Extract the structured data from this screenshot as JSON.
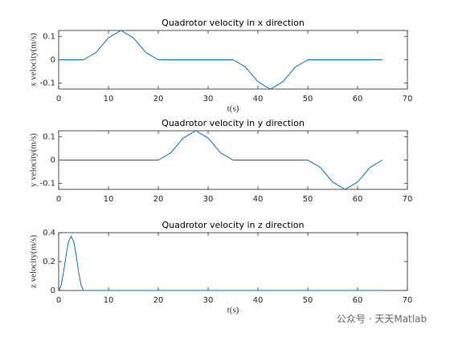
{
  "chart_data": [
    {
      "type": "line",
      "title": "Quadrotor velocity in x direction",
      "ylabel": "x velocity(m/s)",
      "xlabel": "t(s)",
      "color": "#0072bd",
      "x": [
        0,
        2.5,
        5,
        7.5,
        10,
        12.5,
        15,
        17.5,
        20,
        22.5,
        25,
        27.5,
        30,
        32.5,
        35,
        37.5,
        40,
        42.5,
        45,
        47.5,
        50,
        52.5,
        55,
        57.5,
        60,
        62.5,
        65
      ],
      "values": [
        0,
        0,
        0,
        0.031,
        0.094,
        0.125,
        0.094,
        0.031,
        0,
        0,
        0,
        0,
        0,
        0,
        0,
        -0.031,
        -0.094,
        -0.125,
        -0.094,
        -0.031,
        0,
        0,
        0,
        0,
        0,
        0,
        0
      ],
      "xlim": [
        0,
        70
      ],
      "xticks": [
        0,
        10,
        20,
        30,
        40,
        50,
        60,
        70
      ],
      "ylim": [
        -0.125,
        0.125
      ],
      "yticks": [
        -0.1,
        0,
        0.1
      ]
    },
    {
      "type": "line",
      "title": "Quadrotor velocity in y direction",
      "ylabel": "y velocity(m/s)",
      "color": "#0072bd",
      "x": [
        0,
        2.5,
        5,
        7.5,
        10,
        12.5,
        15,
        17.5,
        20,
        22.5,
        25,
        27.5,
        30,
        32.5,
        35,
        37.5,
        40,
        42.5,
        45,
        47.5,
        50,
        52.5,
        55,
        57.5,
        60,
        62.5,
        65
      ],
      "values": [
        0,
        0,
        0,
        0,
        0,
        0,
        0,
        0,
        0,
        0.031,
        0.094,
        0.125,
        0.094,
        0.031,
        0,
        0,
        0,
        0,
        0,
        0,
        0,
        -0.031,
        -0.094,
        -0.125,
        -0.094,
        -0.031,
        0
      ],
      "xlim": [
        0,
        70
      ],
      "xticks": [
        0,
        10,
        20,
        30,
        40,
        50,
        60,
        70
      ],
      "ylim": [
        -0.125,
        0.125
      ],
      "yticks": [
        -0.1,
        0,
        0.1
      ]
    },
    {
      "type": "line",
      "title": "Quadrotor velocity in z direction",
      "ylabel": "z velocity(m/s)",
      "xlabel": "t(s)",
      "color": "#0072bd",
      "x": [
        0,
        0.5,
        1,
        1.5,
        2,
        2.5,
        3,
        3.5,
        4,
        4.5,
        5,
        10,
        15,
        20,
        25,
        30,
        35,
        40,
        45,
        50,
        55,
        60,
        65
      ],
      "values": [
        0,
        0.036,
        0.13,
        0.246,
        0.34,
        0.375,
        0.34,
        0.246,
        0.13,
        0.036,
        0,
        0,
        0,
        0,
        0,
        0,
        0,
        0,
        0,
        0,
        0,
        0,
        0
      ],
      "xlim": [
        0,
        70
      ],
      "xticks": [
        0,
        10,
        20,
        30,
        40,
        50,
        60,
        70
      ],
      "ylim": [
        0,
        0.4
      ],
      "yticks": [
        0,
        0.2,
        0.4
      ]
    }
  ],
  "watermark": "公众号 · 天天Matlab"
}
